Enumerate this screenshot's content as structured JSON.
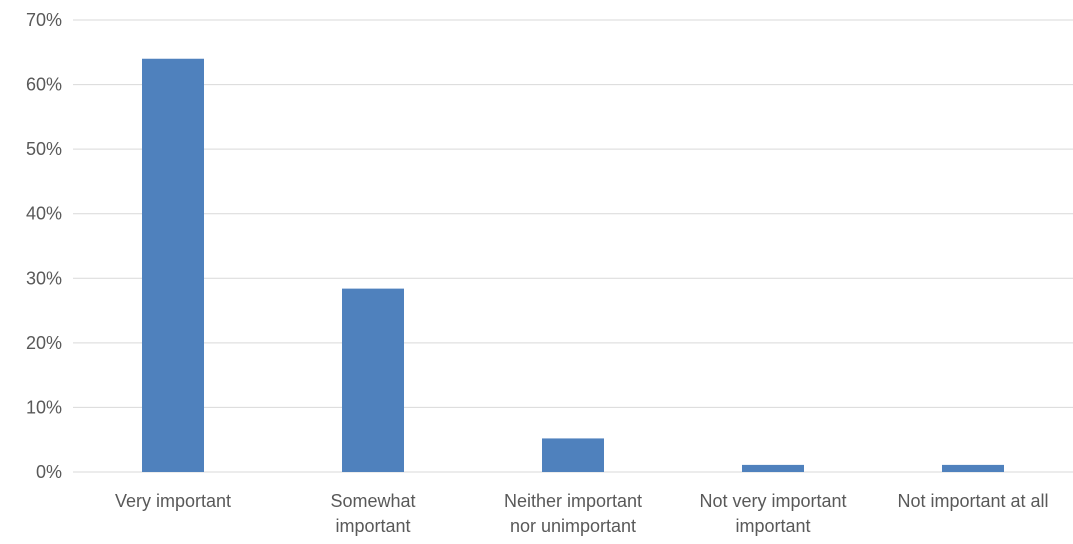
{
  "chart_data": {
    "type": "bar",
    "categories": [
      [
        "Very important"
      ],
      [
        "Somewhat",
        "important"
      ],
      [
        "Neither important",
        "nor unimportant"
      ],
      [
        "Not very important",
        "important"
      ],
      [
        "Not important at all"
      ]
    ],
    "values": [
      0.64,
      0.284,
      0.052,
      0.011,
      0.011
    ],
    "ylim": [
      0,
      0.7
    ],
    "y_ticks": [
      0,
      0.1,
      0.2,
      0.3,
      0.4,
      0.5,
      0.6,
      0.7
    ],
    "y_tick_labels": [
      "0%",
      "10%",
      "20%",
      "30%",
      "40%",
      "50%",
      "60%",
      "70%"
    ],
    "grid": true,
    "legend": "none",
    "title": "",
    "xlabel": "",
    "ylabel": "",
    "colors": {
      "bar": "#4F81BD",
      "grid": "#D9D9D9",
      "text": "#595959"
    }
  }
}
